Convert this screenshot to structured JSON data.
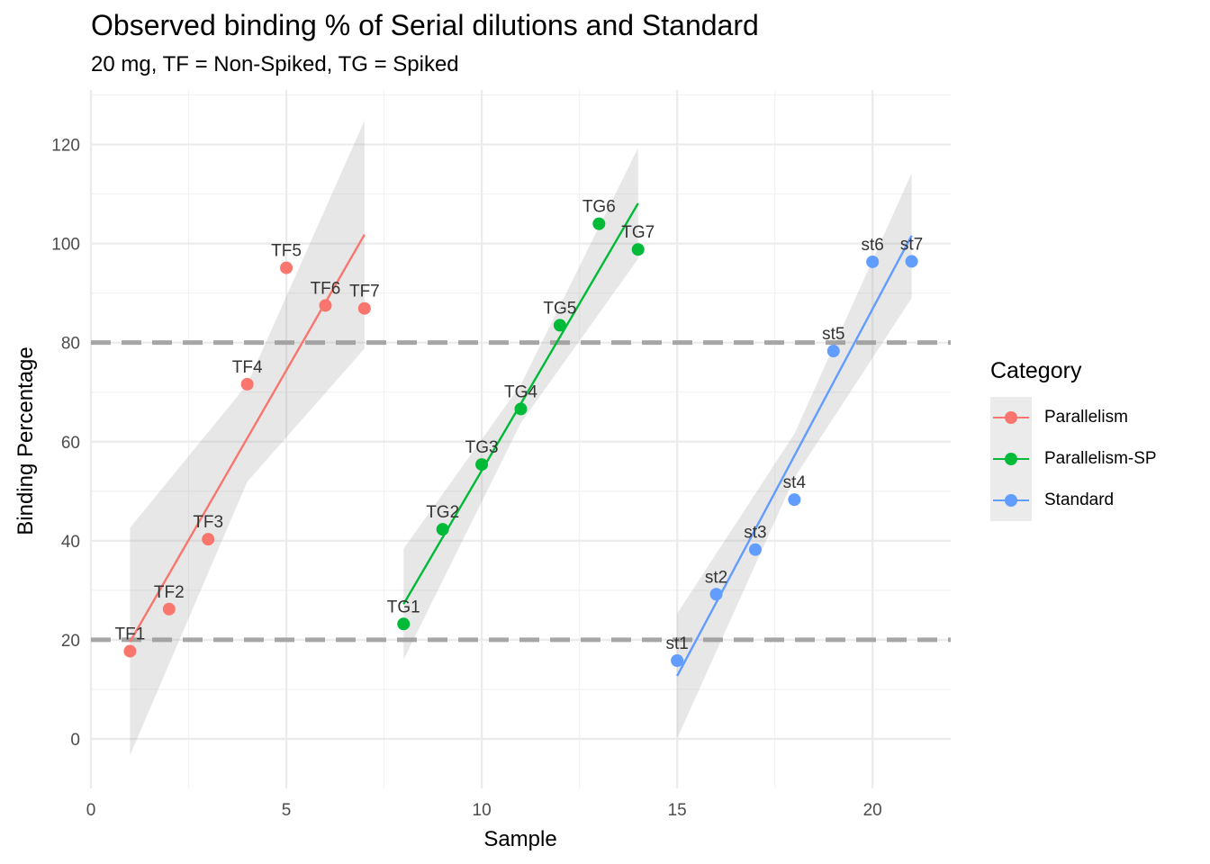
{
  "chart_data": {
    "type": "scatter",
    "title": "Observed binding % of Serial dilutions and Standard",
    "subtitle": "20 mg, TF = Non-Spiked, TG = Spiked",
    "xlabel": "Sample",
    "ylabel": "Binding Percentage",
    "xlim": [
      0,
      22
    ],
    "ylim": [
      -10,
      131
    ],
    "x_ticks": [
      0,
      5,
      10,
      15,
      20
    ],
    "x_tick_labels": [
      "0",
      "5",
      "10",
      "15",
      "20"
    ],
    "y_ticks": [
      0,
      20,
      40,
      60,
      80,
      100,
      120
    ],
    "y_tick_labels": [
      "0",
      "20",
      "40",
      "60",
      "80",
      "100",
      "120"
    ],
    "reference_lines": [
      20,
      80
    ],
    "grid": true,
    "legend_title": "Category",
    "legend_position": "right",
    "series": [
      {
        "name": "Parallelism",
        "color": "#F8766D",
        "points": [
          {
            "x": 1,
            "y": 17.7,
            "label": "TF1"
          },
          {
            "x": 2,
            "y": 26.2,
            "label": "TF2"
          },
          {
            "x": 3,
            "y": 40.3,
            "label": "TF3"
          },
          {
            "x": 4,
            "y": 71.6,
            "label": "TF4"
          },
          {
            "x": 5,
            "y": 95.1,
            "label": "TF5"
          },
          {
            "x": 6,
            "y": 87.5,
            "label": "TF6"
          },
          {
            "x": 7,
            "y": 86.9,
            "label": "TF7"
          }
        ],
        "fit": {
          "x": [
            1,
            7
          ],
          "y": [
            19.6,
            101.8
          ]
        },
        "band": {
          "x": [
            1,
            4,
            7
          ],
          "lower": [
            -3.3,
            51.9,
            78.8
          ],
          "upper": [
            42.6,
            71.6,
            124.8
          ]
        }
      },
      {
        "name": "Parallelism-SP",
        "color": "#00BA38",
        "points": [
          {
            "x": 8,
            "y": 23.2,
            "label": "TG1"
          },
          {
            "x": 9,
            "y": 42.3,
            "label": "TG2"
          },
          {
            "x": 10,
            "y": 55.4,
            "label": "TG3"
          },
          {
            "x": 11,
            "y": 66.6,
            "label": "TG4"
          },
          {
            "x": 12,
            "y": 83.5,
            "label": "TG5"
          },
          {
            "x": 13,
            "y": 104.0,
            "label": "TG6"
          },
          {
            "x": 14,
            "y": 98.8,
            "label": "TG7"
          }
        ],
        "fit": {
          "x": [
            8,
            14
          ],
          "y": [
            27.2,
            108.1
          ]
        },
        "band": {
          "x": [
            8,
            11,
            14
          ],
          "lower": [
            16.0,
            63.8,
            96.9
          ],
          "upper": [
            38.4,
            71.5,
            119.3
          ]
        }
      },
      {
        "name": "Standard",
        "color": "#619CFF",
        "points": [
          {
            "x": 15,
            "y": 15.8,
            "label": "st1"
          },
          {
            "x": 16,
            "y": 29.2,
            "label": "st2"
          },
          {
            "x": 17,
            "y": 38.2,
            "label": "st3"
          },
          {
            "x": 18,
            "y": 48.3,
            "label": "st4"
          },
          {
            "x": 19,
            "y": 78.3,
            "label": "st5"
          },
          {
            "x": 20,
            "y": 96.3,
            "label": "st6"
          },
          {
            "x": 21,
            "y": 96.4,
            "label": "st7"
          }
        ],
        "fit": {
          "x": [
            15,
            21
          ],
          "y": [
            12.7,
            101.6
          ]
        },
        "band": {
          "x": [
            15,
            18,
            21
          ],
          "lower": [
            0.1,
            52.7,
            89.0
          ],
          "upper": [
            25.3,
            61.6,
            114.2
          ]
        }
      }
    ]
  }
}
